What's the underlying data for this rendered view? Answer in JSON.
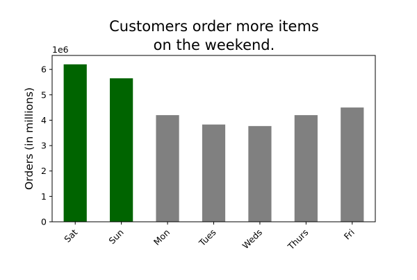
{
  "chart_data": {
    "type": "bar",
    "title_lines": [
      "Customers order more items",
      "on the weekend."
    ],
    "xlabel": "",
    "ylabel": "Orders (in millions)",
    "y_offset_label": "1e6",
    "categories": [
      "Sat",
      "Sun",
      "Mon",
      "Tues",
      "Weds",
      "Thurs",
      "Fri"
    ],
    "values": [
      6200000,
      5650000,
      4200000,
      3830000,
      3770000,
      4200000,
      4500000
    ],
    "ylim": [
      0,
      6550000
    ],
    "y_ticks": [
      0,
      1000000,
      2000000,
      3000000,
      4000000,
      5000000,
      6000000
    ],
    "y_tick_labels": [
      "0",
      "1",
      "2",
      "3",
      "4",
      "5",
      "6"
    ],
    "grid": false,
    "highlight_color": "#006400",
    "base_color": "#808080",
    "highlight_categories": [
      "Sat",
      "Sun"
    ]
  }
}
